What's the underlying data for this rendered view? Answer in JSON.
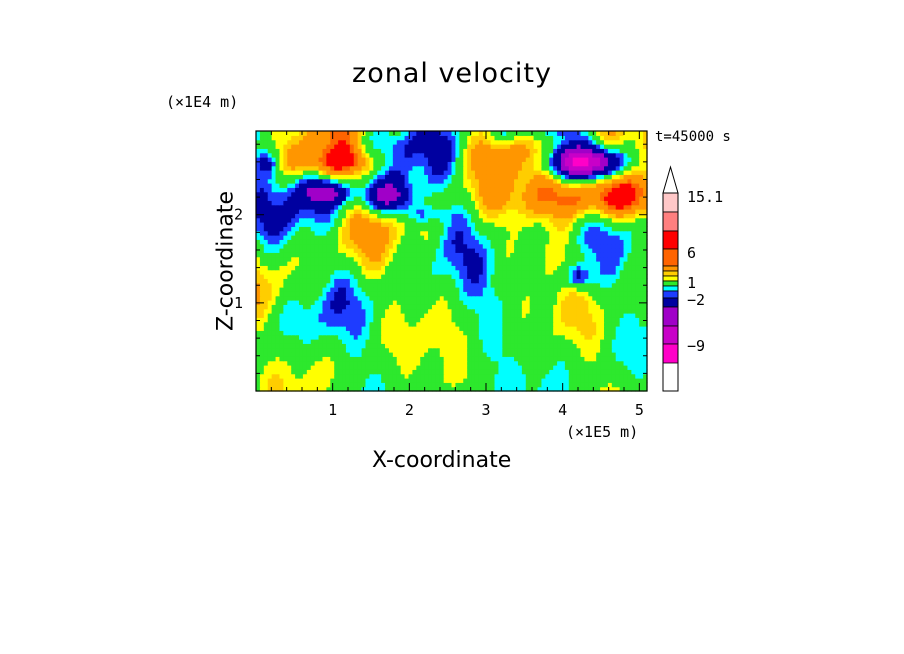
{
  "chart_data": {
    "type": "heatmap",
    "title": "zonal velocity",
    "xlabel": "X-coordinate",
    "ylabel": "Z-coordinate",
    "x_multiplier": "(×1E5 m)",
    "y_multiplier": "(×1E4 m)",
    "time_label": "t=45000 s",
    "xlim": [
      0,
      5.1
    ],
    "ylim": [
      0,
      2.95
    ],
    "x_ticks": [
      "1",
      "2",
      "3",
      "4",
      "5"
    ],
    "y_ticks": [
      "1",
      "2"
    ],
    "colorbar_labels": [
      "15.1",
      "6",
      "1",
      "−2",
      "−9"
    ],
    "colorbar_colors": [
      "#ffffff",
      "#ffc8c8",
      "#ff7f7f",
      "#ff0000",
      "#ff6400",
      "#ff9600",
      "#ffcd00",
      "#ffff00",
      "#2de82d",
      "#00ffff",
      "#1e3cff",
      "#0000a0",
      "#a000c8",
      "#c800c8",
      "#ff00c8"
    ],
    "features": [
      {
        "x": 4.3,
        "z": 2.6,
        "value": -12,
        "sx": 0.35,
        "sz": 0.12
      },
      {
        "x": 4.5,
        "z": 2.2,
        "value": 8,
        "sx": 0.6,
        "sz": 0.18
      },
      {
        "x": 1.1,
        "z": 2.6,
        "value": 5,
        "sx": 0.5,
        "sz": 0.12
      },
      {
        "x": 0.9,
        "z": 2.25,
        "value": -6,
        "sx": 0.2,
        "sz": 0.1
      },
      {
        "x": 1.7,
        "z": 2.2,
        "value": -7,
        "sx": 0.25,
        "sz": 0.12
      },
      {
        "x": 0.15,
        "z": 2.6,
        "value": -4,
        "sx": 0.12,
        "sz": 0.1
      },
      {
        "x": 4.2,
        "z": 1.3,
        "value": -5,
        "sx": 0.12,
        "sz": 0.1
      },
      {
        "x": 2.2,
        "z": 2.0,
        "value": -3,
        "sx": 0.2,
        "sz": 0.08
      },
      {
        "x": 3.4,
        "z": 2.7,
        "value": 3,
        "sx": 0.4,
        "sz": 0.15
      }
    ]
  }
}
